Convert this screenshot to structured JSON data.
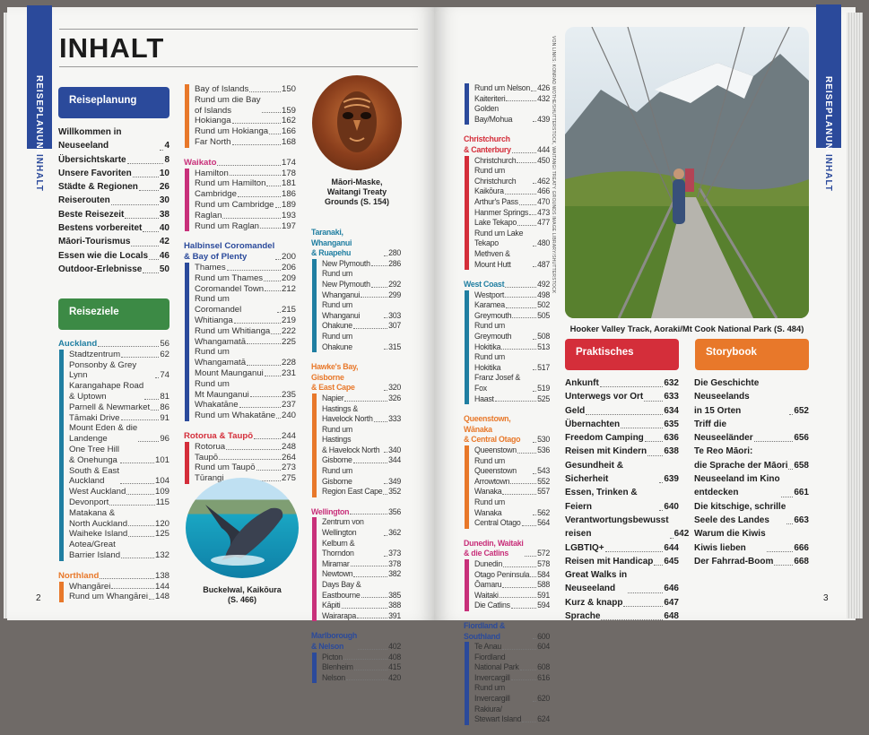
{
  "left_page": {
    "title": "INHALT",
    "side_tab": {
      "section": "REISEPLANUNG",
      "current": "INHALT"
    },
    "page_number": "2",
    "reiseplanung": {
      "heading": "Reiseplanung",
      "color": "#2b4a9b",
      "entries": [
        {
          "label": "Willkommen in Neuseeland",
          "page": "4"
        },
        {
          "label": "Übersichtskarte",
          "page": "8"
        },
        {
          "label": "Unsere Favoriten",
          "page": "10"
        },
        {
          "label": "Städte & Regionen",
          "page": "26"
        },
        {
          "label": "Reiserouten",
          "page": "30"
        },
        {
          "label": "Beste Reisezeit",
          "page": "38"
        },
        {
          "label": "Bestens vorbereitet",
          "page": "40"
        },
        {
          "label": "Māori-Tourismus",
          "page": "42"
        },
        {
          "label": "Essen wie die Locals",
          "page": "46"
        },
        {
          "label": "Outdoor-Erlebnisse",
          "page": "50"
        }
      ]
    },
    "reiseziele": {
      "heading": "Reiseziele",
      "color": "#3c8a45"
    },
    "columns": [
      [
        {
          "name": "Auckland",
          "page": "56",
          "color": "#1f7ea1",
          "items": [
            {
              "label": "Stadtzentrum",
              "page": "62"
            },
            {
              "label": "Ponsonby & Grey Lynn",
              "page": "74"
            },
            {
              "label": "Karangahape Road\n& Uptown",
              "page": "81"
            },
            {
              "label": "Parnell & Newmarket",
              "page": "86"
            },
            {
              "label": "Tāmaki Drive",
              "page": "91"
            },
            {
              "label": "Mount Eden & die\nLandenge",
              "page": "96"
            },
            {
              "label": "One Tree Hill\n& Onehunga",
              "page": "101"
            },
            {
              "label": "South & East\nAuckland",
              "page": "104"
            },
            {
              "label": "West Auckland",
              "page": "109"
            },
            {
              "label": "Devonport",
              "page": "115"
            },
            {
              "label": "Matakana &\nNorth Auckland",
              "page": "120"
            },
            {
              "label": "Waiheke Island",
              "page": "125"
            },
            {
              "label": "Aotea/Great\nBarrier Island",
              "page": "132"
            }
          ]
        },
        {
          "name": "Northland",
          "page": "138",
          "color": "#e8782a",
          "items": [
            {
              "label": "Whangārei",
              "page": "144"
            },
            {
              "label": "Rund um Whangārei",
              "page": "148"
            }
          ]
        }
      ],
      [
        {
          "name": null,
          "color": "#e8782a",
          "items": [
            {
              "label": "Bay of Islands",
              "page": "150"
            },
            {
              "label": "Rund um die Bay\nof Islands",
              "page": "159"
            },
            {
              "label": "Hokianga",
              "page": "162"
            },
            {
              "label": "Rund um Hokianga",
              "page": "166"
            },
            {
              "label": "Far North",
              "page": "168"
            }
          ]
        },
        {
          "name": "Waikato",
          "page": "174",
          "color": "#c8307a",
          "items": [
            {
              "label": "Hamilton",
              "page": "178"
            },
            {
              "label": "Rund um Hamilton",
              "page": "181"
            },
            {
              "label": "Cambridge",
              "page": "186"
            },
            {
              "label": "Rund um Cambridge",
              "page": "189"
            },
            {
              "label": "Raglan",
              "page": "193"
            },
            {
              "label": "Rund um Raglan",
              "page": "197"
            }
          ]
        },
        {
          "name": "Halbinsel Coromandel\n& Bay of Plenty",
          "page": "200",
          "color": "#2b4a9b",
          "items": [
            {
              "label": "Thames",
              "page": "206"
            },
            {
              "label": "Rund um Thames",
              "page": "209"
            },
            {
              "label": "Coromandel Town",
              "page": "212"
            },
            {
              "label": "Rund um Coromandel",
              "page": "215"
            },
            {
              "label": "Whitianga",
              "page": "219"
            },
            {
              "label": "Rund um Whitianga",
              "page": "222"
            },
            {
              "label": "Whangamatā",
              "page": "225"
            },
            {
              "label": "Rund um\nWhangamatā",
              "page": "228"
            },
            {
              "label": "Mount Maunganui",
              "page": "231"
            },
            {
              "label": "Rund um\nMt Maunganui",
              "page": "235"
            },
            {
              "label": "Whakatāne",
              "page": "237"
            },
            {
              "label": "Rund um Whakatāne",
              "page": "240"
            }
          ]
        },
        {
          "name": "Rotorua & Taupō",
          "page": "244",
          "color": "#d42e3a",
          "items": [
            {
              "label": "Rotorua",
              "page": "248"
            },
            {
              "label": "Taupō",
              "page": "264"
            },
            {
              "label": "Rund um Taupō",
              "page": "273"
            },
            {
              "label": "Tūrangi",
              "page": "275"
            }
          ]
        }
      ],
      [
        {
          "name": "Taranaki, Whanganui\n& Ruapehu",
          "page": "280",
          "color": "#1f7ea1",
          "items": [
            {
              "label": "New Plymouth",
              "page": "286"
            },
            {
              "label": "Rund um\nNew Plymouth",
              "page": "292"
            },
            {
              "label": "Whanganui",
              "page": "299"
            },
            {
              "label": "Rund um Whanganui",
              "page": "303"
            },
            {
              "label": "Ohakune",
              "page": "307"
            },
            {
              "label": "Rund um Ohakune",
              "page": "315"
            }
          ]
        },
        {
          "name": "Hawke's Bay, Gisborne\n& East Cape",
          "page": "320",
          "color": "#e8782a",
          "items": [
            {
              "label": "Napier",
              "page": "326"
            },
            {
              "label": "Hastings &\nHavelock North",
              "page": "333"
            },
            {
              "label": "Rund um Hastings\n& Havelock North",
              "page": "340"
            },
            {
              "label": "Gisborne",
              "page": "344"
            },
            {
              "label": "Rund um Gisborne",
              "page": "349"
            },
            {
              "label": "Region East Cape",
              "page": "352"
            }
          ]
        },
        {
          "name": "Wellington",
          "page": "356",
          "color": "#c8307a",
          "items": [
            {
              "label": "Zentrum von Wellington",
              "page": "362"
            },
            {
              "label": "Kelburn & Thorndon",
              "page": "373"
            },
            {
              "label": "Miramar",
              "page": "378"
            },
            {
              "label": "Newtown",
              "page": "382"
            },
            {
              "label": "Days Bay &\nEastbourne",
              "page": "385"
            },
            {
              "label": "Kāpiti",
              "page": "388"
            },
            {
              "label": "Wairarapa",
              "page": "391"
            }
          ]
        },
        {
          "name": "Marlborough\n& Nelson",
          "page": "402",
          "color": "#2b4a9b",
          "items": [
            {
              "label": "Picton",
              "page": "408"
            },
            {
              "label": "Blenheim",
              "page": "415"
            },
            {
              "label": "Nelson",
              "page": "420"
            }
          ]
        }
      ]
    ],
    "captions": {
      "mask": "Māori-Maske,\nWaitangi Treaty\nGrounds (S. 154)",
      "whale": "Buckelwal, Kaikōura\n(S. 466)"
    }
  },
  "right_page": {
    "page_number": "3",
    "side_tab": {
      "section": "REISEPLANUNG",
      "current": "INHALT"
    },
    "credit": "VON LINKS: KONRAD WOTHE/SHUTTERSTOCK, WAITANGI TREATY GROUNDS IMAGE LIBRARY/SHUTTERSTOCK",
    "column": [
      {
        "name": null,
        "color": "#2b4a9b",
        "items": [
          {
            "label": "Rund um Nelson",
            "page": "426"
          },
          {
            "label": "Kaiteriteri",
            "page": "432"
          },
          {
            "label": "Golden Bay/Mohua",
            "page": "439"
          }
        ]
      },
      {
        "name": "Christchurch\n& Canterbury",
        "page": "444",
        "color": "#d42e3a",
        "items": [
          {
            "label": "Christchurch",
            "page": "450"
          },
          {
            "label": "Rund um Christchurch",
            "page": "462"
          },
          {
            "label": "Kaikōura",
            "page": "466"
          },
          {
            "label": "Arthur's Pass",
            "page": "470"
          },
          {
            "label": "Hanmer Springs",
            "page": "473"
          },
          {
            "label": "Lake Tekapo",
            "page": "477"
          },
          {
            "label": "Rund um Lake Tekapo",
            "page": "480"
          },
          {
            "label": "Methven & Mount Hutt",
            "page": "487"
          }
        ]
      },
      {
        "name": "West Coast",
        "page": "492",
        "color": "#1f7ea1",
        "items": [
          {
            "label": "Westport",
            "page": "498"
          },
          {
            "label": "Karamea",
            "page": "502"
          },
          {
            "label": "Greymouth",
            "page": "505"
          },
          {
            "label": "Rund um Greymouth",
            "page": "508"
          },
          {
            "label": "Hokitika",
            "page": "513"
          },
          {
            "label": "Rund um Hokitika",
            "page": "517"
          },
          {
            "label": "Franz Josef & Fox",
            "page": "519"
          },
          {
            "label": "Haast",
            "page": "525"
          }
        ]
      },
      {
        "name": "Queenstown, Wānaka\n& Central Otago",
        "page": "530",
        "color": "#e8782a",
        "items": [
          {
            "label": "Queenstown",
            "page": "536"
          },
          {
            "label": "Rund um Queenstown",
            "page": "543"
          },
          {
            "label": "Arrowtown",
            "page": "552"
          },
          {
            "label": "Wanaka",
            "page": "557"
          },
          {
            "label": "Rund um Wanaka",
            "page": "562"
          },
          {
            "label": "Central Otago",
            "page": "564"
          }
        ]
      },
      {
        "name": "Dunedin, Waitaki\n& die Catlins",
        "page": "572",
        "color": "#c8307a",
        "items": [
          {
            "label": "Dunedin",
            "page": "578"
          },
          {
            "label": "Otago Peninsula",
            "page": "584"
          },
          {
            "label": "Ōamaru",
            "page": "588"
          },
          {
            "label": "Waitaki",
            "page": "591"
          },
          {
            "label": "Die Catlins",
            "page": "594"
          }
        ]
      },
      {
        "name": "Fiordland & Southland",
        "page": "600",
        "color": "#2b4a9b",
        "items": [
          {
            "label": "Te Anau",
            "page": "604"
          },
          {
            "label": "Fiordland\nNational Park",
            "page": "608"
          },
          {
            "label": "Invercargill",
            "page": "616"
          },
          {
            "label": "Rund um Invercargill",
            "page": "620"
          },
          {
            "label": "Rakiura/\nStewart Island",
            "page": "624"
          }
        ]
      }
    ],
    "photo_caption": "Hooker Valley Track, Aoraki/Mt Cook National Park (S. 484)",
    "praktisches": {
      "heading": "Praktisches",
      "color": "#d42e3a",
      "entries": [
        {
          "label": "Ankunft",
          "page": "632"
        },
        {
          "label": "Unterwegs vor Ort",
          "page": "633"
        },
        {
          "label": "Geld",
          "page": "634"
        },
        {
          "label": "Übernachten",
          "page": "635"
        },
        {
          "label": "Freedom Camping",
          "page": "636"
        },
        {
          "label": "Reisen mit Kindern",
          "page": "638"
        },
        {
          "label": "Gesundheit & Sicherheit",
          "page": "639"
        },
        {
          "label": "Essen, Trinken & Feiern",
          "page": "640"
        },
        {
          "label": "Verantwortungsbewusst\nreisen",
          "page": "642"
        },
        {
          "label": "LGBTIQ+",
          "page": "644"
        },
        {
          "label": "Reisen mit Handicap",
          "page": "645"
        },
        {
          "label": "Great Walks in\nNeuseeland",
          "page": "646"
        },
        {
          "label": "Kurz & knapp",
          "page": "647"
        },
        {
          "label": "Sprache",
          "page": "648"
        }
      ]
    },
    "storybook": {
      "heading": "Storybook",
      "color": "#e8782a",
      "entries": [
        {
          "label": "Die Geschichte Neuseelands\nin 15 Orten",
          "page": "652"
        },
        {
          "label": "Triff die\nNeuseeländer",
          "page": "656"
        },
        {
          "label": "Te Reo Māori:\ndie Sprache der Māori",
          "page": "658"
        },
        {
          "label": "Neuseeland im Kino\nentdecken",
          "page": "661"
        },
        {
          "label": "Die kitschige, schrille\nSeele des Landes",
          "page": "663"
        },
        {
          "label": "Warum die Kiwis\nKiwis lieben",
          "page": "666"
        },
        {
          "label": "Der Fahrrad-Boom",
          "page": "668"
        }
      ]
    }
  }
}
